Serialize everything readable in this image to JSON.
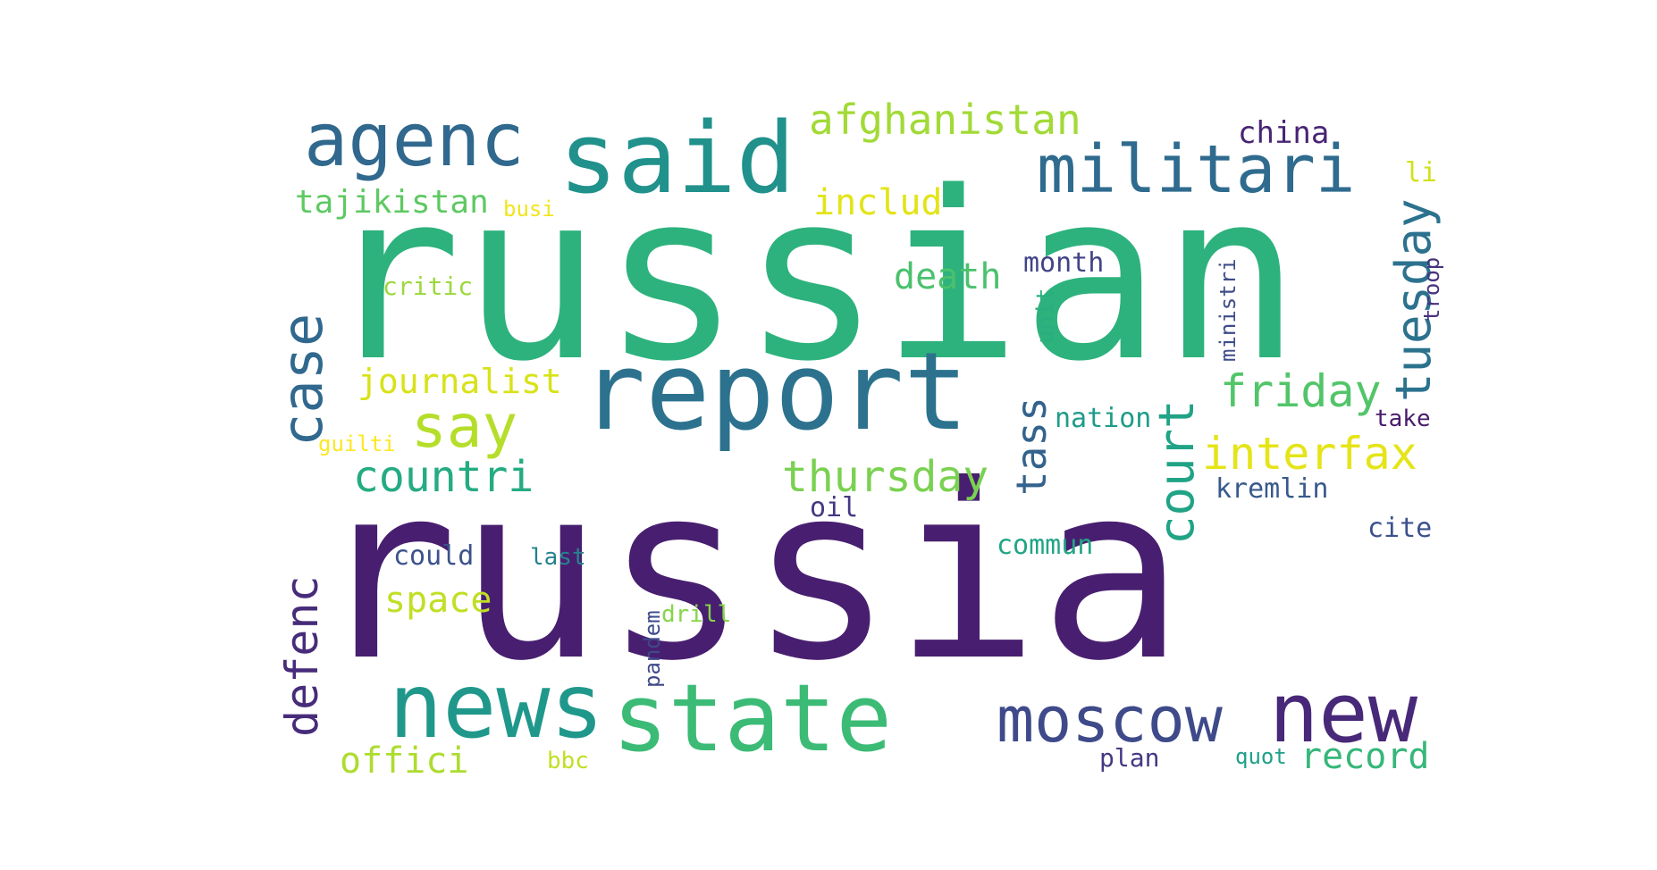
{
  "words": [
    {
      "text": "russian",
      "color": "#2db27d"
    },
    {
      "text": "russia",
      "color": "#481f70"
    },
    {
      "text": "report",
      "color": "#2c728e"
    },
    {
      "text": "said",
      "color": "#21918c"
    },
    {
      "text": "agenc",
      "color": "#31688e"
    },
    {
      "text": "militari",
      "color": "#2f6b8e"
    },
    {
      "text": "news",
      "color": "#1f988b"
    },
    {
      "text": "state",
      "color": "#3bbb75"
    },
    {
      "text": "new",
      "color": "#482878"
    },
    {
      "text": "moscow",
      "color": "#3e4a89"
    },
    {
      "text": "afghanistan",
      "color": "#a2da37"
    },
    {
      "text": "case",
      "color": "#31688e"
    },
    {
      "text": "say",
      "color": "#b5de2b"
    },
    {
      "text": "tuesday",
      "color": "#2c728e"
    },
    {
      "text": "friday",
      "color": "#52c569"
    },
    {
      "text": "court",
      "color": "#20a386"
    },
    {
      "text": "interfax",
      "color": "#e5e419"
    },
    {
      "text": "thursday",
      "color": "#7ad151"
    },
    {
      "text": "tass",
      "color": "#33638d"
    },
    {
      "text": "countri",
      "color": "#25ab82"
    },
    {
      "text": "defenc",
      "color": "#472c7a"
    },
    {
      "text": "includ",
      "color": "#e2e418"
    },
    {
      "text": "china",
      "color": "#482475"
    },
    {
      "text": "tajikistan",
      "color": "#5ec962"
    },
    {
      "text": "death",
      "color": "#4ac16d"
    },
    {
      "text": "journalist",
      "color": "#d8e219"
    },
    {
      "text": "space",
      "color": "#c0df25"
    },
    {
      "text": "offici",
      "color": "#addc30"
    },
    {
      "text": "record",
      "color": "#35b779"
    },
    {
      "text": "month",
      "color": "#414487"
    },
    {
      "text": "nation",
      "color": "#1e9c89"
    },
    {
      "text": "critic",
      "color": "#9bd93c"
    },
    {
      "text": "li",
      "color": "#d0e11c"
    },
    {
      "text": "kremlin",
      "color": "#38598c"
    },
    {
      "text": "cite",
      "color": "#3b528b"
    },
    {
      "text": "commun",
      "color": "#21a585"
    },
    {
      "text": "could",
      "color": "#3b528b"
    },
    {
      "text": "plan",
      "color": "#443983"
    },
    {
      "text": "oil",
      "color": "#453882"
    },
    {
      "text": "unit",
      "color": "#29af7f"
    },
    {
      "text": "ministri",
      "color": "#3e4c8a"
    },
    {
      "text": "troop",
      "color": "#46337f"
    },
    {
      "text": "take",
      "color": "#481b6d"
    },
    {
      "text": "pandem",
      "color": "#3e4989"
    },
    {
      "text": "last",
      "color": "#26828e"
    },
    {
      "text": "drill",
      "color": "#86d549"
    },
    {
      "text": "bbc",
      "color": "#c2df23"
    },
    {
      "text": "quot",
      "color": "#1fa088"
    },
    {
      "text": "guilti",
      "color": "#fde725"
    },
    {
      "text": "busi",
      "color": "#f1e51d"
    }
  ]
}
